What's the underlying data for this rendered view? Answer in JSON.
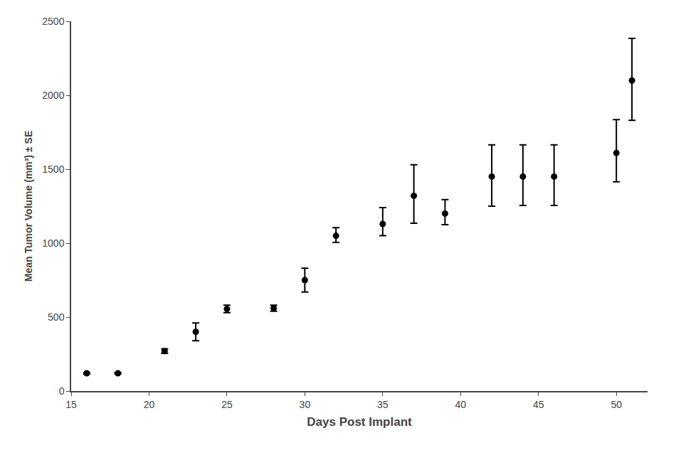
{
  "chart_data": {
    "type": "scatter",
    "x": [
      16,
      18,
      21,
      23,
      25,
      28,
      30,
      32,
      35,
      37,
      39,
      42,
      44,
      46,
      50,
      51
    ],
    "values": [
      120,
      120,
      270,
      400,
      555,
      560,
      750,
      1050,
      1130,
      1320,
      1200,
      1450,
      1450,
      1450,
      1610,
      2100
    ],
    "error_lower": [
      5,
      5,
      15,
      60,
      25,
      20,
      80,
      45,
      80,
      185,
      75,
      200,
      195,
      195,
      195,
      270
    ],
    "error_upper": [
      5,
      5,
      15,
      60,
      25,
      20,
      80,
      55,
      110,
      210,
      95,
      215,
      215,
      215,
      225,
      285
    ],
    "xlabel": "Days Post Implant",
    "ylabel": "Mean Tumor Volume (mm³) ± SE",
    "xlim": [
      15,
      52
    ],
    "ylim": [
      0,
      2500
    ],
    "xticks": [
      15,
      20,
      25,
      30,
      35,
      40,
      45,
      50
    ],
    "yticks": [
      0,
      500,
      1000,
      1500,
      2000,
      2500
    ],
    "color": "#000000",
    "marker": "circle",
    "grid": false
  }
}
